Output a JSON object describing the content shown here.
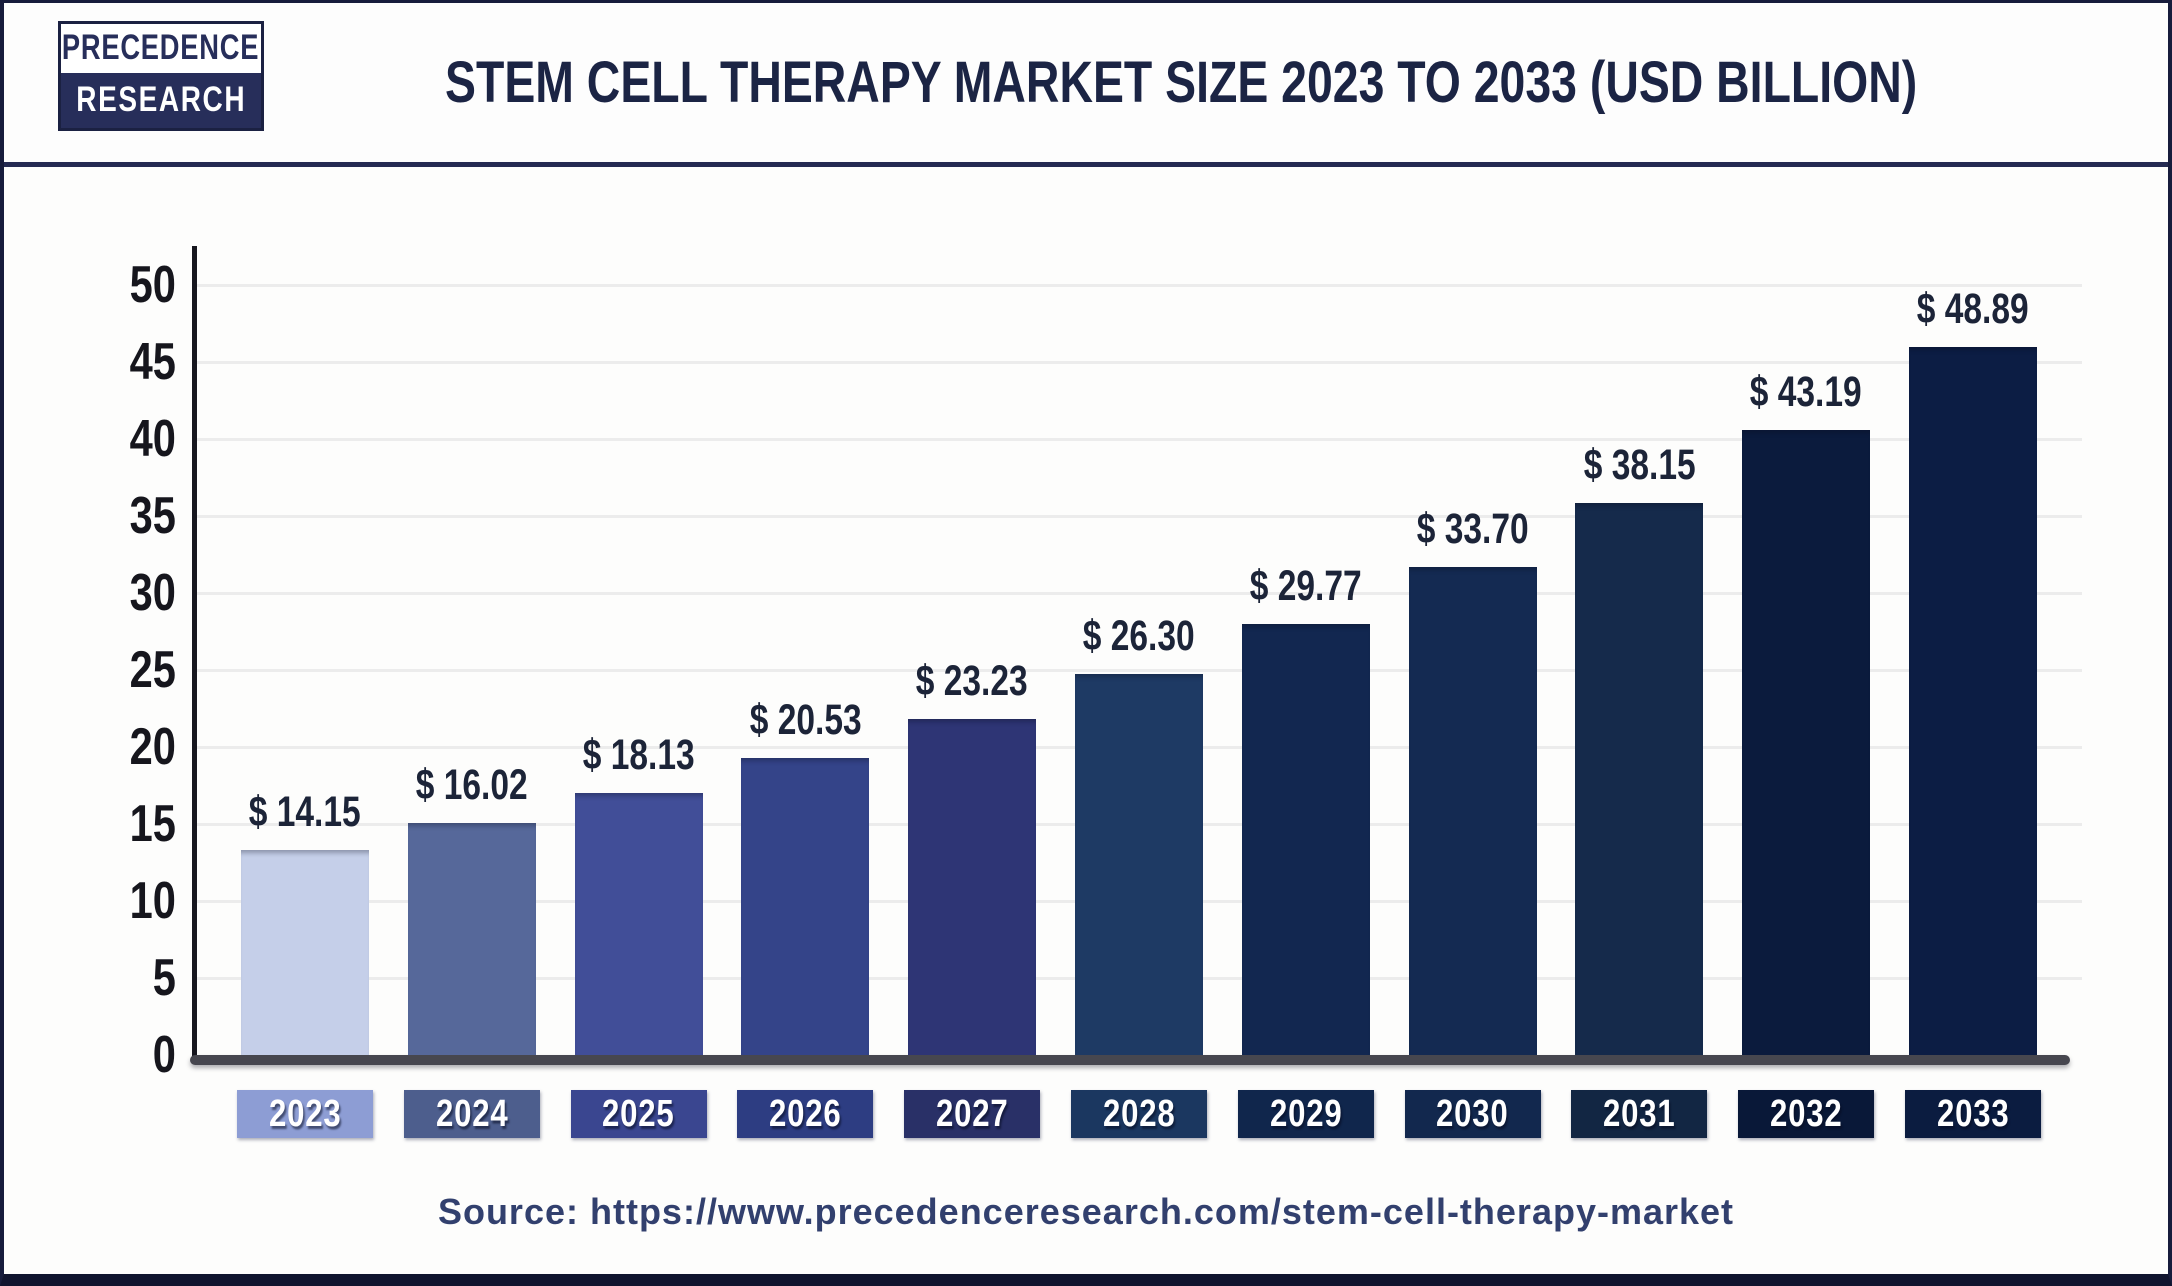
{
  "logo": {
    "line1": "PRECEDENCE",
    "line2": "RESEARCH"
  },
  "header": {
    "title": "STEM CELL THERAPY MARKET SIZE 2023 TO 2033 (USD BILLION)"
  },
  "source": {
    "text": "Source: https://www.precedenceresearch.com/stem-cell-therapy-market"
  },
  "colors": {
    "background": "#fdfdfc",
    "title": "#1b2444",
    "border": "#171c3c",
    "separator": "#242a52",
    "axis_line": "#17171f",
    "baseline": "#47474f",
    "gridline": "#ececec",
    "y_tick_label": "#16161d",
    "value_label": "#1c2438",
    "year_label_text": "#ffffff",
    "source_text": "#32406e",
    "logo_navy": "#272e5a"
  },
  "chart_data": {
    "type": "bar",
    "title": "Stem Cell Therapy Market Size 2023 to 2033 (USD Billion)",
    "categories": [
      "2023",
      "2024",
      "2025",
      "2026",
      "2027",
      "2028",
      "2029",
      "2030",
      "2031",
      "2032",
      "2033"
    ],
    "values": [
      14.15,
      16.02,
      18.13,
      20.53,
      23.23,
      26.3,
      29.77,
      33.7,
      38.15,
      43.19,
      48.89
    ],
    "value_labels": [
      "$ 14.15",
      "$ 16.02",
      "$ 18.13",
      "$ 20.53",
      "$ 23.23",
      "$ 26.30",
      "$ 29.77",
      "$ 33.70",
      "$ 38.15",
      "$ 43.19",
      "$ 48.89"
    ],
    "series_name": "Market Size (USD Billion)",
    "y_ticks": [
      0,
      5,
      10,
      15,
      20,
      25,
      30,
      35,
      40,
      45,
      50
    ],
    "ylim": [
      0,
      50
    ],
    "xlabel": "",
    "ylabel": "",
    "grid": "horizontal",
    "legend_position": "none",
    "bar_colors": [
      "#c5cfe9",
      "#56689a",
      "#414e98",
      "#344489",
      "#2e3575",
      "#1e3a64",
      "#122750",
      "#142a52",
      "#152a4b",
      "#0b1b3d",
      "#0c1d44"
    ],
    "category_box_colors": [
      "#8d9dd4",
      "#4d5e8d",
      "#3a4690",
      "#2d3d82",
      "#293067",
      "#1b3760",
      "#10264c",
      "#12284e",
      "#122643",
      "#091838",
      "#0b1c40"
    ]
  }
}
